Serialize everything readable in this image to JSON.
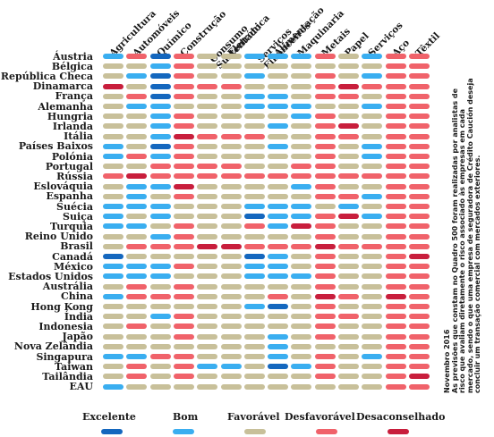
{
  "chart_data": {
    "type": "heatmap",
    "sectors": [
      "Agricultura",
      "Automóveis",
      "Químico",
      "Construção",
      "Consumo Sustentado",
      "Eletrónica",
      "Serviços Financeiros",
      "Alimentação",
      "Maquinaria",
      "Metais",
      "Papel",
      "Serviços",
      "Aço",
      "Têxtil"
    ],
    "sector_lines": [
      [
        "Agricultura"
      ],
      [
        "Automóveis"
      ],
      [
        "Químico"
      ],
      [
        "Construção"
      ],
      [
        "Consumo",
        "Sustentado"
      ],
      [
        "Eletrónica"
      ],
      [
        "Serviços",
        "Financeiros"
      ],
      [
        "Alimentação"
      ],
      [
        "Maquinaria"
      ],
      [
        "Metais"
      ],
      [
        "Papel"
      ],
      [
        "Serviços"
      ],
      [
        "Aço"
      ],
      [
        "Têxtil"
      ]
    ],
    "countries": [
      "Áustria",
      "Bélgica",
      "República Checa",
      "Dinamarca",
      "França",
      "Alemanha",
      "Hungria",
      "Irlanda",
      "Itália",
      "Países Baixos",
      "Polónia",
      "Portugal",
      "Rússia",
      "Eslováquia",
      "Espanha",
      "Suécia",
      "Suiça",
      "Turquia",
      "Reino Unido",
      "Brasil",
      "Canadá",
      "México",
      "Estados Unidos",
      "Austrália",
      "China",
      "Hong Kong",
      "Índia",
      "Indonesia",
      "Japão",
      "Nova Zelândia",
      "Singapura",
      "Taiwan",
      "Tailândia",
      "EAU"
    ],
    "levels": [
      "Excelente",
      "Bom",
      "Favorável",
      "Desfavorável",
      "Desaconselhado"
    ],
    "colors": [
      "#1467be",
      "#3aaef0",
      "#c8c09a",
      "#f0626a",
      "#c81e3c"
    ],
    "ratings": [
      [
        1,
        3,
        0,
        3,
        2,
        2,
        1,
        1,
        1,
        3,
        2,
        1,
        3,
        3
      ],
      [
        2,
        2,
        1,
        3,
        2,
        2,
        2,
        2,
        2,
        2,
        2,
        2,
        3,
        3
      ],
      [
        2,
        1,
        0,
        3,
        2,
        2,
        1,
        2,
        2,
        3,
        2,
        1,
        3,
        3
      ],
      [
        4,
        2,
        0,
        3,
        3,
        3,
        2,
        2,
        2,
        3,
        4,
        3,
        3,
        3
      ],
      [
        2,
        3,
        0,
        3,
        2,
        2,
        1,
        1,
        2,
        3,
        3,
        2,
        3,
        3
      ],
      [
        2,
        1,
        1,
        2,
        2,
        2,
        1,
        1,
        1,
        2,
        2,
        1,
        3,
        3
      ],
      [
        2,
        2,
        1,
        3,
        2,
        2,
        2,
        2,
        1,
        3,
        2,
        2,
        3,
        3
      ],
      [
        2,
        2,
        1,
        3,
        2,
        2,
        2,
        1,
        2,
        3,
        4,
        2,
        3,
        3
      ],
      [
        2,
        2,
        1,
        4,
        3,
        3,
        3,
        2,
        2,
        3,
        3,
        2,
        3,
        3
      ],
      [
        1,
        2,
        0,
        3,
        2,
        2,
        2,
        1,
        2,
        3,
        2,
        1,
        3,
        3
      ],
      [
        1,
        3,
        1,
        3,
        2,
        2,
        2,
        2,
        2,
        3,
        2,
        1,
        3,
        3
      ],
      [
        2,
        2,
        3,
        3,
        3,
        3,
        2,
        2,
        3,
        3,
        2,
        2,
        3,
        3
      ],
      [
        3,
        4,
        3,
        3,
        3,
        3,
        3,
        3,
        3,
        3,
        3,
        3,
        3,
        3
      ],
      [
        2,
        1,
        1,
        4,
        2,
        2,
        2,
        2,
        1,
        3,
        2,
        2,
        3,
        3
      ],
      [
        2,
        1,
        2,
        3,
        2,
        2,
        2,
        2,
        2,
        3,
        3,
        1,
        3,
        3
      ],
      [
        1,
        1,
        1,
        2,
        2,
        2,
        1,
        1,
        1,
        2,
        1,
        2,
        3,
        3
      ],
      [
        1,
        2,
        1,
        2,
        2,
        2,
        0,
        1,
        1,
        3,
        4,
        1,
        3,
        3
      ],
      [
        1,
        1,
        2,
        3,
        2,
        2,
        3,
        1,
        4,
        3,
        2,
        2,
        3,
        3
      ],
      [
        2,
        2,
        1,
        3,
        2,
        2,
        2,
        2,
        2,
        3,
        2,
        2,
        3,
        3
      ],
      [
        2,
        3,
        3,
        3,
        4,
        4,
        3,
        3,
        3,
        4,
        3,
        3,
        3,
        3
      ],
      [
        0,
        2,
        2,
        2,
        2,
        2,
        0,
        1,
        2,
        3,
        2,
        2,
        3,
        4
      ],
      [
        1,
        1,
        1,
        3,
        2,
        2,
        1,
        1,
        2,
        3,
        2,
        2,
        3,
        3
      ],
      [
        1,
        1,
        1,
        2,
        2,
        2,
        1,
        1,
        1,
        3,
        2,
        2,
        3,
        3
      ],
      [
        2,
        3,
        2,
        3,
        2,
        2,
        2,
        2,
        2,
        3,
        2,
        2,
        3,
        3
      ],
      [
        1,
        3,
        3,
        3,
        2,
        2,
        2,
        3,
        2,
        4,
        3,
        2,
        4,
        3
      ],
      [
        2,
        2,
        2,
        2,
        2,
        2,
        1,
        0,
        2,
        3,
        2,
        2,
        3,
        3
      ],
      [
        2,
        2,
        1,
        3,
        2,
        2,
        2,
        2,
        2,
        3,
        3,
        2,
        3,
        3
      ],
      [
        2,
        3,
        2,
        3,
        2,
        2,
        2,
        2,
        2,
        3,
        2,
        2,
        3,
        3
      ],
      [
        2,
        2,
        2,
        3,
        2,
        2,
        2,
        1,
        2,
        3,
        2,
        2,
        3,
        3
      ],
      [
        2,
        2,
        2,
        2,
        2,
        2,
        2,
        1,
        2,
        2,
        2,
        2,
        3,
        3
      ],
      [
        1,
        1,
        3,
        3,
        2,
        2,
        2,
        1,
        2,
        3,
        2,
        1,
        3,
        3
      ],
      [
        2,
        3,
        2,
        3,
        1,
        1,
        2,
        0,
        1,
        3,
        2,
        2,
        3,
        3
      ],
      [
        2,
        3,
        2,
        3,
        2,
        2,
        2,
        2,
        2,
        3,
        2,
        2,
        3,
        4
      ],
      [
        1,
        2,
        2,
        2,
        2,
        2,
        2,
        2,
        2,
        2,
        2,
        2,
        3,
        3
      ]
    ]
  },
  "note": {
    "lines": [
      "Novembro 2016",
      "As previsões que constam no Quadro 500 foram realizadas por analistas de",
      "risco que avaliam diretamente o risco associado às empresas em cada",
      "mercado, sendo o que uma empresa de seguradora de Crédito Caución deseja",
      "concluir um transação comercial com mercados exteriores."
    ]
  }
}
